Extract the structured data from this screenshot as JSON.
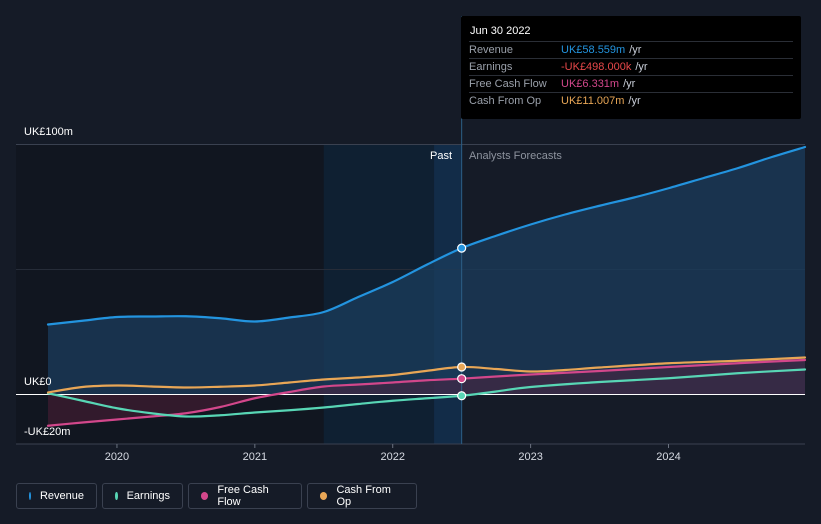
{
  "chart_data": {
    "type": "line",
    "x_label_ticks": [
      "2020",
      "2021",
      "2022",
      "2023",
      "2024"
    ],
    "y_ticks": [
      "UK£100m",
      "UK£0",
      "-UK£20m"
    ],
    "ylim": [
      -20,
      100
    ],
    "xlim": [
      2019.5,
      2024.99
    ],
    "past_label": "Past",
    "forecast_label": "Analysts Forecasts",
    "divider_x": 2022.5,
    "series": [
      {
        "name": "Revenue",
        "color": "#2394df",
        "points": [
          [
            2019.5,
            28.0
          ],
          [
            2019.75,
            29.5
          ],
          [
            2020.0,
            31.0
          ],
          [
            2020.25,
            31.2
          ],
          [
            2020.5,
            31.3
          ],
          [
            2020.75,
            30.5
          ],
          [
            2021.0,
            29.2
          ],
          [
            2021.25,
            30.8
          ],
          [
            2021.5,
            33.0
          ],
          [
            2021.75,
            39.0
          ],
          [
            2022.0,
            45.0
          ],
          [
            2022.25,
            52.0
          ],
          [
            2022.5,
            58.559
          ],
          [
            2022.75,
            63.5
          ],
          [
            2023.0,
            68.0
          ],
          [
            2023.25,
            72.0
          ],
          [
            2023.5,
            75.5
          ],
          [
            2023.75,
            78.8
          ],
          [
            2024.0,
            82.5
          ],
          [
            2024.25,
            86.5
          ],
          [
            2024.5,
            90.5
          ],
          [
            2024.75,
            95.0
          ],
          [
            2024.99,
            99.0
          ]
        ]
      },
      {
        "name": "Earnings",
        "color": "#58d6b5",
        "points": [
          [
            2019.5,
            0.5
          ],
          [
            2019.75,
            -2.5
          ],
          [
            2020.0,
            -5.5
          ],
          [
            2020.25,
            -7.5
          ],
          [
            2020.5,
            -8.8
          ],
          [
            2020.75,
            -8.3
          ],
          [
            2021.0,
            -7.2
          ],
          [
            2021.25,
            -6.3
          ],
          [
            2021.5,
            -5.2
          ],
          [
            2021.75,
            -3.8
          ],
          [
            2022.0,
            -2.5
          ],
          [
            2022.25,
            -1.5
          ],
          [
            2022.5,
            -0.498
          ],
          [
            2022.75,
            1.2
          ],
          [
            2023.0,
            3.0
          ],
          [
            2023.5,
            5.0
          ],
          [
            2024.0,
            6.5
          ],
          [
            2024.5,
            8.5
          ],
          [
            2024.99,
            10.0
          ]
        ]
      },
      {
        "name": "Free Cash Flow",
        "color": "#d2478b",
        "points": [
          [
            2019.5,
            -12.5
          ],
          [
            2019.75,
            -11.2
          ],
          [
            2020.0,
            -10.0
          ],
          [
            2020.25,
            -8.8
          ],
          [
            2020.5,
            -7.5
          ],
          [
            2020.75,
            -5.0
          ],
          [
            2021.0,
            -1.5
          ],
          [
            2021.25,
            1.0
          ],
          [
            2021.5,
            3.2
          ],
          [
            2021.75,
            4.0
          ],
          [
            2022.0,
            4.8
          ],
          [
            2022.25,
            5.7
          ],
          [
            2022.5,
            6.331
          ],
          [
            2022.75,
            7.2
          ],
          [
            2023.0,
            8.0
          ],
          [
            2023.5,
            9.4
          ],
          [
            2024.0,
            11.0
          ],
          [
            2024.5,
            12.5
          ],
          [
            2024.99,
            13.8
          ]
        ]
      },
      {
        "name": "Cash From Op",
        "color": "#e8a656",
        "points": [
          [
            2019.5,
            0.8
          ],
          [
            2019.75,
            3.0
          ],
          [
            2020.0,
            3.6
          ],
          [
            2020.25,
            3.2
          ],
          [
            2020.5,
            2.8
          ],
          [
            2020.75,
            3.1
          ],
          [
            2021.0,
            3.6
          ],
          [
            2021.25,
            4.8
          ],
          [
            2021.5,
            6.0
          ],
          [
            2021.75,
            6.8
          ],
          [
            2022.0,
            7.8
          ],
          [
            2022.25,
            9.5
          ],
          [
            2022.5,
            11.007
          ],
          [
            2022.75,
            10.2
          ],
          [
            2023.0,
            9.2
          ],
          [
            2023.25,
            9.8
          ],
          [
            2023.5,
            10.8
          ],
          [
            2024.0,
            12.5
          ],
          [
            2024.5,
            13.5
          ],
          [
            2024.99,
            14.8
          ]
        ]
      }
    ]
  },
  "tooltip": {
    "date": "Jun 30 2022",
    "unit": "/yr",
    "rows": [
      {
        "label": "Revenue",
        "value": "UK£58.559m",
        "color": "#2394df"
      },
      {
        "label": "Earnings",
        "value": "-UK£498.000k",
        "color": "#e8484a"
      },
      {
        "label": "Free Cash Flow",
        "value": "UK£6.331m",
        "color": "#d2478b"
      },
      {
        "label": "Cash From Op",
        "value": "UK£11.007m",
        "color": "#e8a656"
      }
    ]
  },
  "legend": [
    {
      "label": "Revenue",
      "color": "#2394df"
    },
    {
      "label": "Earnings",
      "color": "#58d6b5"
    },
    {
      "label": "Free Cash Flow",
      "color": "#d2478b"
    },
    {
      "label": "Cash From Op",
      "color": "#e8a656"
    }
  ]
}
